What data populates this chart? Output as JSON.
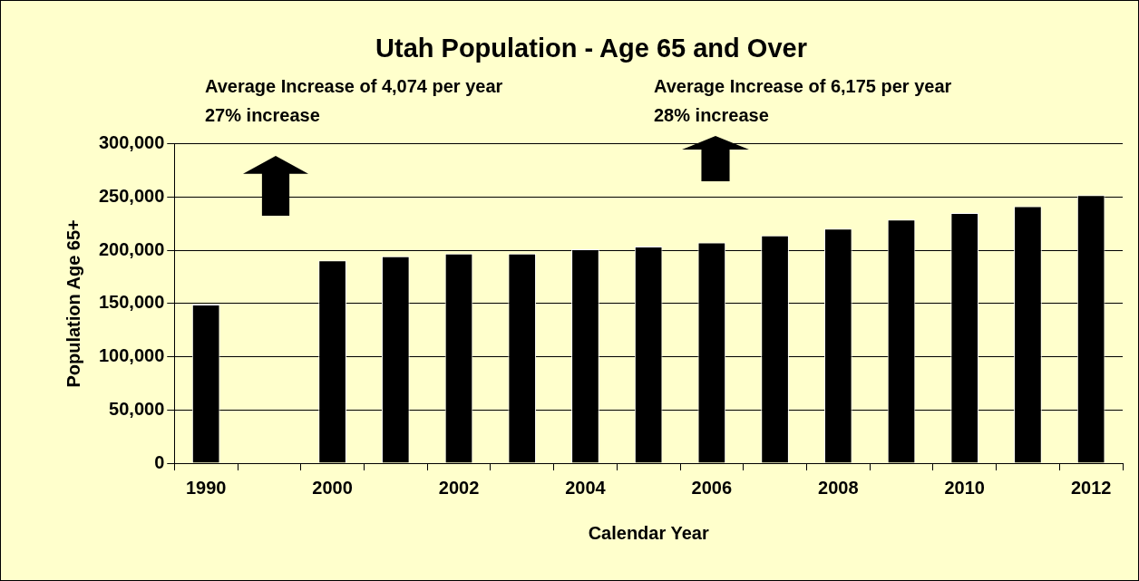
{
  "chart_data": {
    "type": "bar",
    "title": "Utah Population - Age 65 and Over",
    "xlabel": "Calendar Year",
    "ylabel": "Population Age 65+",
    "annotations": [
      "Average Increase of 4,074 per year",
      "27% increase",
      "Average Increase of 6,175 per year",
      "28% increase"
    ],
    "categories": [
      "1990",
      null,
      "2000",
      null,
      "2002",
      null,
      "2004",
      null,
      "2006",
      null,
      "2008",
      null,
      "2010",
      null,
      "2012"
    ],
    "values": [
      149000,
      null,
      190500,
      194500,
      197000,
      197000,
      201000,
      203500,
      207500,
      214000,
      220500,
      229000,
      235000,
      241500,
      252000
    ],
    "color": "#000000",
    "ylim": [
      0,
      300000
    ],
    "yticks": [
      0,
      {
        "value": 50000,
        "label": "50,000"
      },
      {
        "value": 100000,
        "label": "100,000"
      },
      {
        "value": 150000,
        "label": "150,000"
      },
      {
        "value": 200000,
        "label": "200,000"
      },
      {
        "value": 250000,
        "label": "250,000"
      },
      {
        "value": 300000,
        "label": "300,000"
      }
    ],
    "grid": "y"
  }
}
